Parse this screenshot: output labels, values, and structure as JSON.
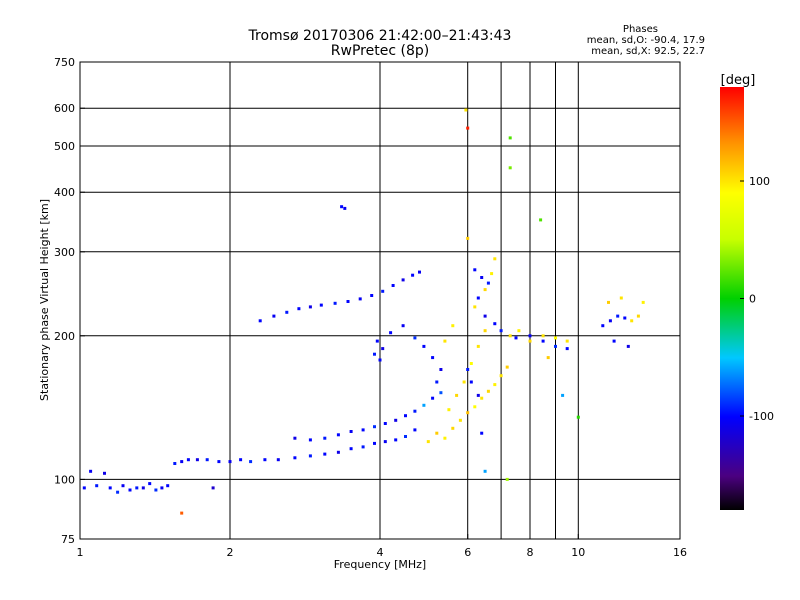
{
  "title_line1": "Tromsø 20170306 21:42:00–21:43:43",
  "title_line2": "RwPretec (8p)",
  "stats": {
    "heading": "Phases",
    "line_o": "mean, sd,O: -90.4, 17.9",
    "line_x": "mean, sd,X:  92.5, 22.7"
  },
  "colorbar": {
    "label": "[deg]",
    "ticks": [
      {
        "value": 100,
        "label": "100"
      },
      {
        "value": 0,
        "label": "0"
      },
      {
        "value": -100,
        "label": "-100"
      }
    ],
    "range": [
      -180,
      180
    ]
  },
  "chart_data": {
    "type": "scatter",
    "xlabel": "Frequency [MHz]",
    "ylabel": "Stationary phase Virtual Height [km]",
    "x_scale": "log",
    "y_scale": "log",
    "xlim": [
      1,
      16
    ],
    "ylim": [
      75,
      750
    ],
    "x_ticks": [
      {
        "value": 1,
        "label": "1"
      },
      {
        "value": 2,
        "label": "2"
      },
      {
        "value": 4,
        "label": "4"
      },
      {
        "value": 6,
        "label": "6"
      },
      {
        "value": 8,
        "label": "8"
      },
      {
        "value": 10,
        "label": "10"
      },
      {
        "value": 16,
        "label": "16"
      }
    ],
    "y_ticks": [
      {
        "value": 75,
        "label": "75"
      },
      {
        "value": 100,
        "label": "100"
      },
      {
        "value": 200,
        "label": "200"
      },
      {
        "value": 300,
        "label": "300"
      },
      {
        "value": 400,
        "label": "400"
      },
      {
        "value": 500,
        "label": "500"
      },
      {
        "value": 600,
        "label": "600"
      },
      {
        "value": 750,
        "label": "750"
      }
    ],
    "x_grid": [
      2,
      4,
      6,
      7,
      8,
      9,
      10
    ],
    "y_grid": [
      100,
      200,
      300,
      400,
      500,
      600
    ],
    "point_color_encodes": "phase [deg]",
    "points": [
      {
        "f": 1.02,
        "h": 96,
        "p": -100
      },
      {
        "f": 1.05,
        "h": 104,
        "p": -105
      },
      {
        "f": 1.08,
        "h": 97,
        "p": -95
      },
      {
        "f": 1.12,
        "h": 103,
        "p": -110
      },
      {
        "f": 1.15,
        "h": 96,
        "p": -100
      },
      {
        "f": 1.19,
        "h": 94,
        "p": -90
      },
      {
        "f": 1.22,
        "h": 97,
        "p": -105
      },
      {
        "f": 1.26,
        "h": 95,
        "p": -100
      },
      {
        "f": 1.3,
        "h": 96,
        "p": -95
      },
      {
        "f": 1.34,
        "h": 96,
        "p": -110
      },
      {
        "f": 1.38,
        "h": 98,
        "p": -100
      },
      {
        "f": 1.42,
        "h": 95,
        "p": -90
      },
      {
        "f": 1.46,
        "h": 96,
        "p": -105
      },
      {
        "f": 1.5,
        "h": 97,
        "p": -100
      },
      {
        "f": 1.55,
        "h": 108,
        "p": -95
      },
      {
        "f": 1.6,
        "h": 109,
        "p": -105
      },
      {
        "f": 1.65,
        "h": 110,
        "p": -100
      },
      {
        "f": 1.72,
        "h": 110,
        "p": -110
      },
      {
        "f": 1.8,
        "h": 110,
        "p": -95
      },
      {
        "f": 1.9,
        "h": 109,
        "p": -100
      },
      {
        "f": 2.0,
        "h": 109,
        "p": -105
      },
      {
        "f": 2.1,
        "h": 110,
        "p": -100
      },
      {
        "f": 2.2,
        "h": 109,
        "p": -90
      },
      {
        "f": 2.35,
        "h": 110,
        "p": -100
      },
      {
        "f": 2.5,
        "h": 110,
        "p": -105
      },
      {
        "f": 2.7,
        "h": 111,
        "p": -100
      },
      {
        "f": 2.9,
        "h": 112,
        "p": -95
      },
      {
        "f": 3.1,
        "h": 113,
        "p": -100
      },
      {
        "f": 3.3,
        "h": 114,
        "p": -110
      },
      {
        "f": 3.5,
        "h": 116,
        "p": -100
      },
      {
        "f": 3.7,
        "h": 117,
        "p": -95
      },
      {
        "f": 3.9,
        "h": 119,
        "p": -100
      },
      {
        "f": 4.1,
        "h": 120,
        "p": -105
      },
      {
        "f": 4.3,
        "h": 121,
        "p": -100
      },
      {
        "f": 4.5,
        "h": 123,
        "p": -90
      },
      {
        "f": 4.7,
        "h": 127,
        "p": -100
      },
      {
        "f": 2.7,
        "h": 122,
        "p": -110
      },
      {
        "f": 2.9,
        "h": 121,
        "p": -100
      },
      {
        "f": 3.1,
        "h": 122,
        "p": -95
      },
      {
        "f": 3.3,
        "h": 124,
        "p": -100
      },
      {
        "f": 3.5,
        "h": 126,
        "p": -105
      },
      {
        "f": 3.7,
        "h": 127,
        "p": -100
      },
      {
        "f": 3.9,
        "h": 129,
        "p": -90
      },
      {
        "f": 4.1,
        "h": 131,
        "p": -100
      },
      {
        "f": 4.3,
        "h": 133,
        "p": -110
      },
      {
        "f": 4.5,
        "h": 136,
        "p": -100
      },
      {
        "f": 4.7,
        "h": 139,
        "p": -95
      },
      {
        "f": 4.9,
        "h": 143,
        "p": -60
      },
      {
        "f": 5.1,
        "h": 148,
        "p": -100
      },
      {
        "f": 5.3,
        "h": 152,
        "p": -80
      },
      {
        "f": 2.3,
        "h": 215,
        "p": -100
      },
      {
        "f": 2.45,
        "h": 220,
        "p": -105
      },
      {
        "f": 2.6,
        "h": 224,
        "p": -95
      },
      {
        "f": 2.75,
        "h": 228,
        "p": -100
      },
      {
        "f": 2.9,
        "h": 230,
        "p": -110
      },
      {
        "f": 3.05,
        "h": 232,
        "p": -100
      },
      {
        "f": 3.25,
        "h": 234,
        "p": -95
      },
      {
        "f": 3.45,
        "h": 236,
        "p": -100
      },
      {
        "f": 3.65,
        "h": 239,
        "p": -105
      },
      {
        "f": 3.85,
        "h": 243,
        "p": -100
      },
      {
        "f": 4.05,
        "h": 248,
        "p": -95
      },
      {
        "f": 4.25,
        "h": 255,
        "p": -100
      },
      {
        "f": 4.45,
        "h": 262,
        "p": -110
      },
      {
        "f": 4.65,
        "h": 268,
        "p": -100
      },
      {
        "f": 4.8,
        "h": 272,
        "p": -105
      },
      {
        "f": 3.35,
        "h": 373,
        "p": -100
      },
      {
        "f": 3.4,
        "h": 370,
        "p": -105
      },
      {
        "f": 3.95,
        "h": 195,
        "p": -100
      },
      {
        "f": 4.05,
        "h": 188,
        "p": -110
      },
      {
        "f": 3.9,
        "h": 183,
        "p": -95
      },
      {
        "f": 4.0,
        "h": 178,
        "p": -100
      },
      {
        "f": 4.2,
        "h": 203,
        "p": -100
      },
      {
        "f": 4.45,
        "h": 210,
        "p": -105
      },
      {
        "f": 4.7,
        "h": 198,
        "p": -90
      },
      {
        "f": 4.9,
        "h": 190,
        "p": -100
      },
      {
        "f": 5.1,
        "h": 180,
        "p": -100
      },
      {
        "f": 5.3,
        "h": 170,
        "p": -110
      },
      {
        "f": 5.2,
        "h": 160,
        "p": -95
      },
      {
        "f": 5.0,
        "h": 120,
        "p": 100
      },
      {
        "f": 5.2,
        "h": 125,
        "p": 110
      },
      {
        "f": 5.4,
        "h": 122,
        "p": 95
      },
      {
        "f": 5.6,
        "h": 128,
        "p": 105
      },
      {
        "f": 5.8,
        "h": 133,
        "p": 100
      },
      {
        "f": 6.0,
        "h": 138,
        "p": 115
      },
      {
        "f": 6.2,
        "h": 142,
        "p": 90
      },
      {
        "f": 6.4,
        "h": 148,
        "p": 100
      },
      {
        "f": 6.6,
        "h": 153,
        "p": 105
      },
      {
        "f": 6.8,
        "h": 158,
        "p": 95
      },
      {
        "f": 7.0,
        "h": 165,
        "p": 100
      },
      {
        "f": 7.2,
        "h": 172,
        "p": 110
      },
      {
        "f": 5.5,
        "h": 140,
        "p": 95
      },
      {
        "f": 5.7,
        "h": 150,
        "p": 105
      },
      {
        "f": 5.9,
        "h": 160,
        "p": 100
      },
      {
        "f": 6.1,
        "h": 175,
        "p": 90
      },
      {
        "f": 6.3,
        "h": 190,
        "p": 100
      },
      {
        "f": 6.5,
        "h": 205,
        "p": 105
      },
      {
        "f": 5.6,
        "h": 210,
        "p": 95
      },
      {
        "f": 5.4,
        "h": 195,
        "p": 100
      },
      {
        "f": 6.2,
        "h": 230,
        "p": 100
      },
      {
        "f": 6.5,
        "h": 250,
        "p": 105
      },
      {
        "f": 6.7,
        "h": 270,
        "p": 95
      },
      {
        "f": 6.8,
        "h": 290,
        "p": 100
      },
      {
        "f": 6.0,
        "h": 320,
        "p": 110
      },
      {
        "f": 7.3,
        "h": 200,
        "p": 100
      },
      {
        "f": 7.6,
        "h": 205,
        "p": 95
      },
      {
        "f": 8.0,
        "h": 195,
        "p": 105
      },
      {
        "f": 8.5,
        "h": 200,
        "p": 100
      },
      {
        "f": 9.0,
        "h": 198,
        "p": 90
      },
      {
        "f": 9.5,
        "h": 195,
        "p": 100
      },
      {
        "f": 6.2,
        "h": 275,
        "p": -100
      },
      {
        "f": 6.4,
        "h": 265,
        "p": -105
      },
      {
        "f": 6.6,
        "h": 258,
        "p": -95
      },
      {
        "f": 6.3,
        "h": 240,
        "p": -100
      },
      {
        "f": 6.5,
        "h": 220,
        "p": -110
      },
      {
        "f": 6.8,
        "h": 212,
        "p": -100
      },
      {
        "f": 7.0,
        "h": 205,
        "p": -95
      },
      {
        "f": 7.5,
        "h": 198,
        "p": -100
      },
      {
        "f": 8.0,
        "h": 200,
        "p": -105
      },
      {
        "f": 8.5,
        "h": 195,
        "p": -100
      },
      {
        "f": 9.0,
        "h": 190,
        "p": -90
      },
      {
        "f": 9.5,
        "h": 188,
        "p": -100
      },
      {
        "f": 6.1,
        "h": 160,
        "p": -100
      },
      {
        "f": 6.3,
        "h": 150,
        "p": -110
      },
      {
        "f": 6.0,
        "h": 170,
        "p": -95
      },
      {
        "f": 6.4,
        "h": 125,
        "p": -100
      },
      {
        "f": 11.2,
        "h": 210,
        "p": -100
      },
      {
        "f": 11.6,
        "h": 215,
        "p": -105
      },
      {
        "f": 12.0,
        "h": 220,
        "p": -95
      },
      {
        "f": 12.4,
        "h": 218,
        "p": -100
      },
      {
        "f": 12.8,
        "h": 215,
        "p": 100
      },
      {
        "f": 13.2,
        "h": 220,
        "p": 105
      },
      {
        "f": 11.5,
        "h": 235,
        "p": 110
      },
      {
        "f": 12.2,
        "h": 240,
        "p": 100
      },
      {
        "f": 13.5,
        "h": 235,
        "p": 95
      },
      {
        "f": 11.8,
        "h": 195,
        "p": -100
      },
      {
        "f": 12.6,
        "h": 190,
        "p": -110
      },
      {
        "f": 7.3,
        "h": 450,
        "p": 30
      },
      {
        "f": 7.3,
        "h": 520,
        "p": 20
      },
      {
        "f": 8.4,
        "h": 350,
        "p": 20
      },
      {
        "f": 5.95,
        "h": 595,
        "p": 100
      },
      {
        "f": 6.0,
        "h": 545,
        "p": 170
      },
      {
        "f": 1.6,
        "h": 85,
        "p": 150
      },
      {
        "f": 1.85,
        "h": 96,
        "p": -120
      },
      {
        "f": 10.0,
        "h": 135,
        "p": 10
      },
      {
        "f": 7.2,
        "h": 100,
        "p": 40
      },
      {
        "f": 6.5,
        "h": 104,
        "p": -60
      },
      {
        "f": 8.7,
        "h": 180,
        "p": 110
      },
      {
        "f": 9.3,
        "h": 150,
        "p": -60
      }
    ]
  }
}
